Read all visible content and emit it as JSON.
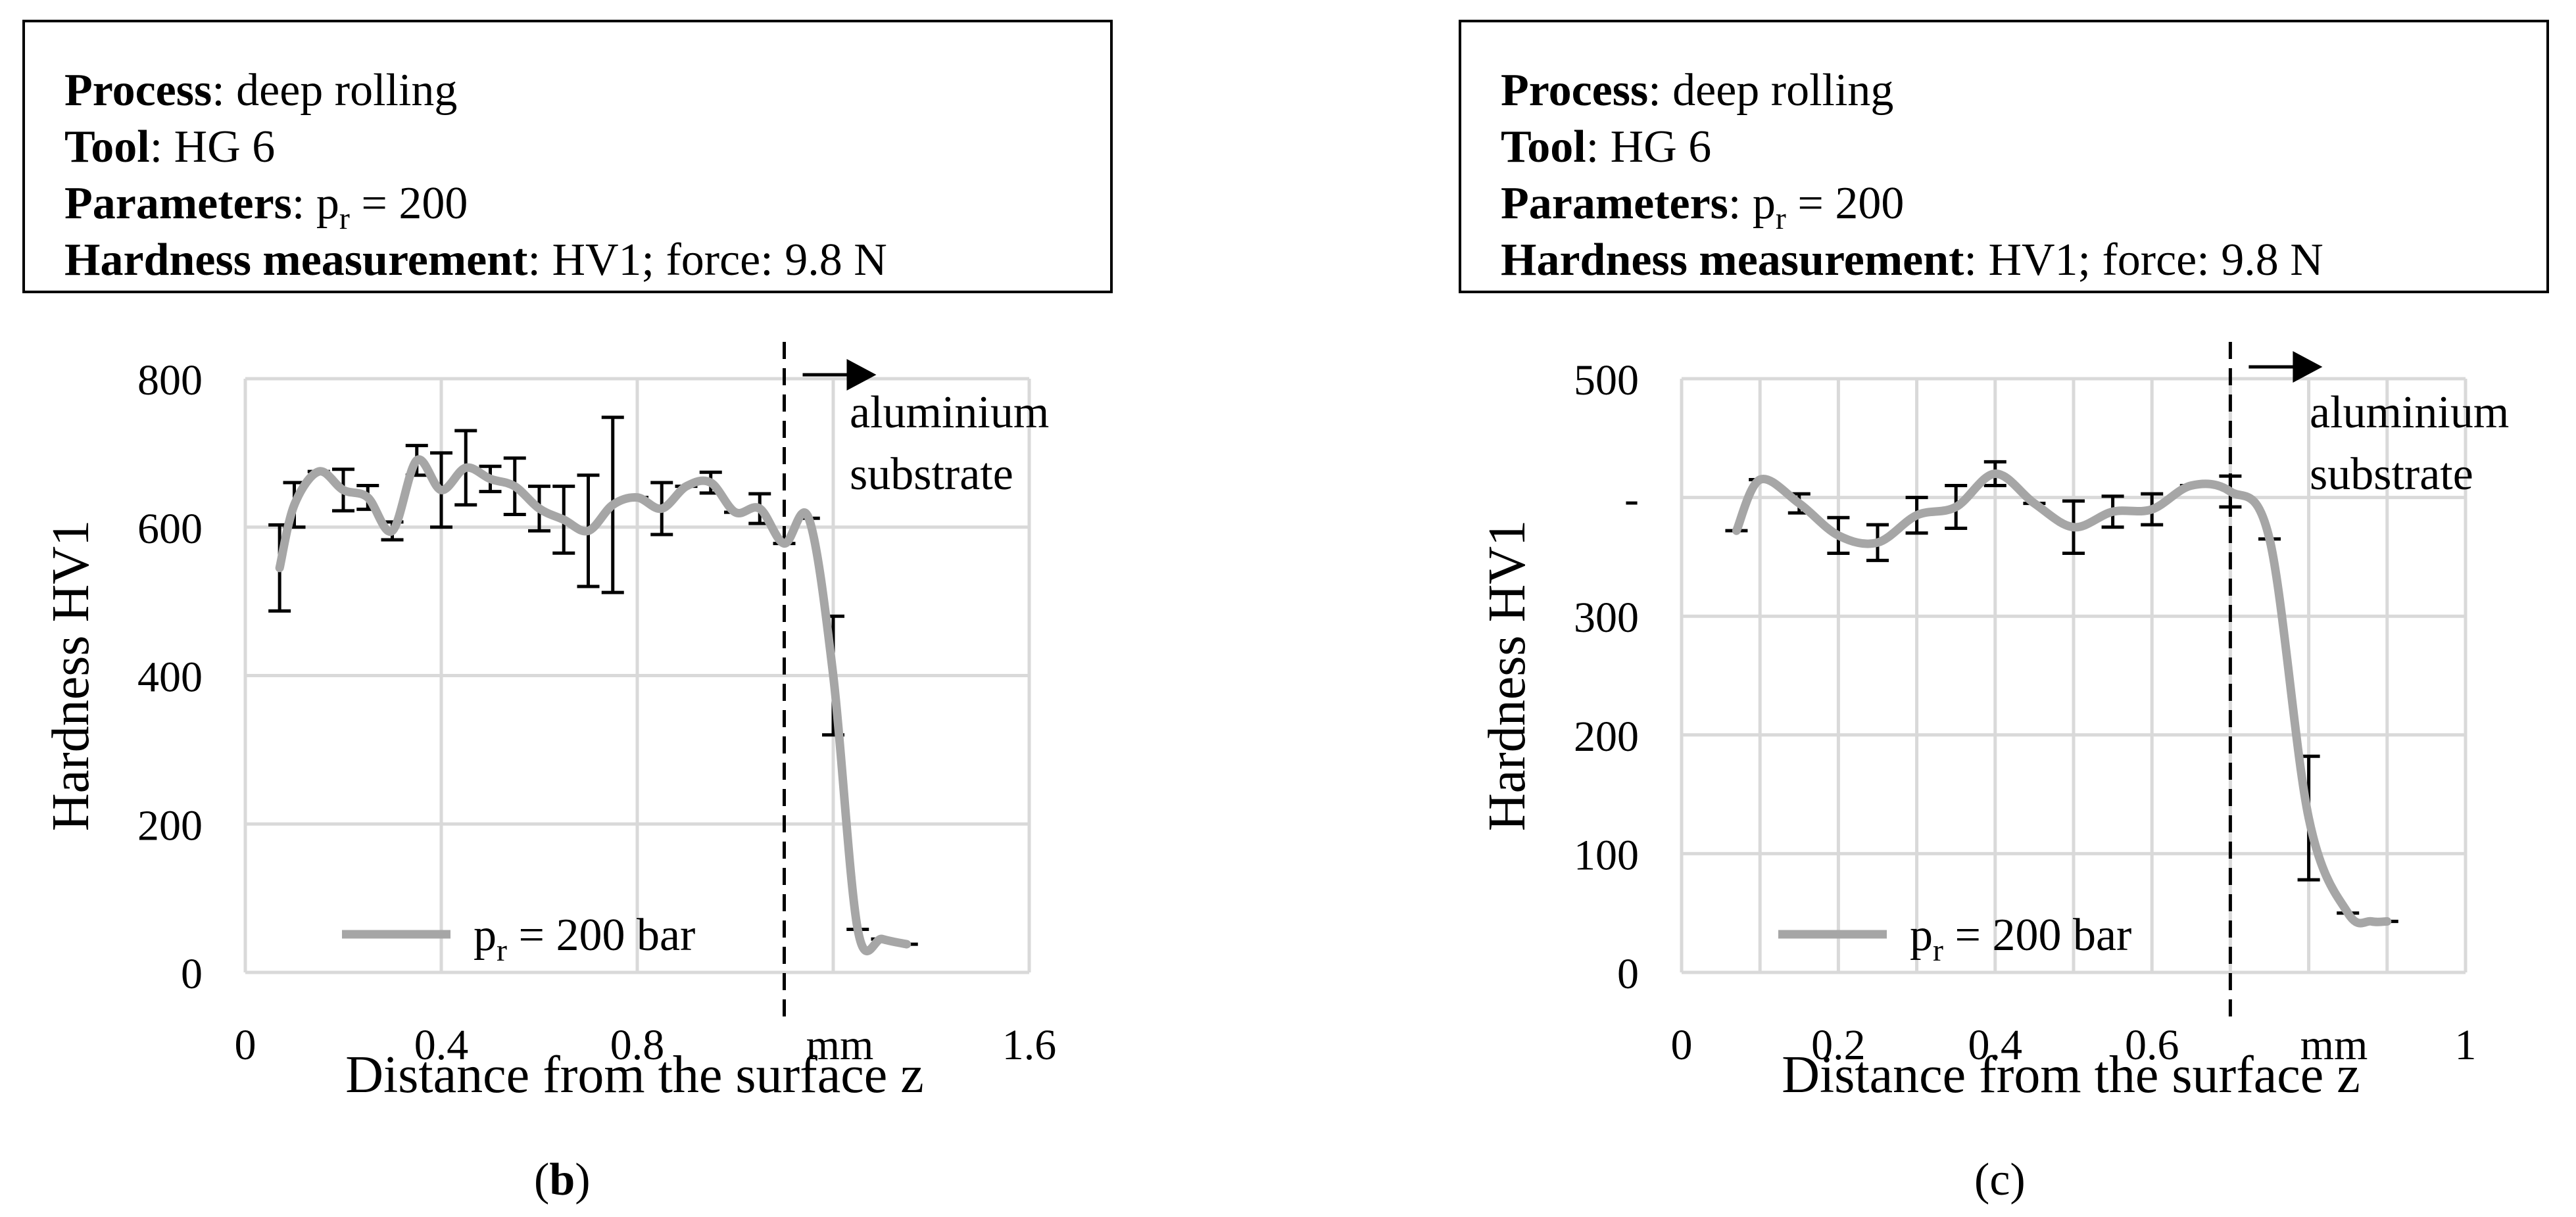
{
  "info": {
    "process_label": "Process",
    "process_value": "deep rolling",
    "tool_label": "Tool",
    "tool_value": "HG 6",
    "parameters_label": "Parameters",
    "parameters_symbol": "p",
    "parameters_sub": "r",
    "parameters_value": " = 200",
    "hardness_label": "Hardness measurement",
    "hardness_value": "HV1; force: 9.8 N"
  },
  "colors": {
    "series_line": "#a6a6a6",
    "grid": "#d9d9d9",
    "error_bar": "#000000"
  },
  "chart_data": [
    {
      "type": "line",
      "panel_label": "b",
      "xlabel": "Distance from the surface z",
      "x_unit": "mm",
      "ylabel": "Hardness HV1",
      "xlim": [
        0,
        1.6
      ],
      "ylim": [
        0,
        800
      ],
      "x_ticks": [
        {
          "value": 0,
          "label": "0"
        },
        {
          "value": 0.4,
          "label": "0.4"
        },
        {
          "value": 0.8,
          "label": "0.8"
        },
        {
          "value": 1.6,
          "label": "1.6"
        }
      ],
      "x_gridlines": [
        0,
        0.4,
        0.8,
        1.2,
        1.6
      ],
      "y_ticks": [
        {
          "value": 0,
          "label": "0"
        },
        {
          "value": 200,
          "label": "200"
        },
        {
          "value": 400,
          "label": "400"
        },
        {
          "value": 600,
          "label": "600"
        },
        {
          "value": 800,
          "label": "800"
        }
      ],
      "y_gridlines": [
        0,
        200,
        400,
        600,
        800
      ],
      "boundary_x": 1.1,
      "annotation": [
        "aluminium",
        "substrate"
      ],
      "legend_symbol": "p",
      "legend_sub": "r",
      "legend_text": " = 200 bar",
      "legend_position": "bottom-left",
      "grid": true,
      "series": [
        {
          "name": "pr = 200 bar",
          "x": [
            0.07,
            0.1,
            0.15,
            0.2,
            0.25,
            0.3,
            0.35,
            0.4,
            0.45,
            0.5,
            0.55,
            0.6,
            0.65,
            0.7,
            0.75,
            0.8,
            0.85,
            0.9,
            0.95,
            1.0,
            1.05,
            1.1,
            1.15,
            1.2,
            1.25,
            1.3,
            1.35
          ],
          "y": [
            545,
            630,
            675,
            650,
            640,
            595,
            690,
            650,
            680,
            665,
            655,
            625,
            610,
            595,
            630,
            640,
            625,
            655,
            660,
            620,
            625,
            578,
            612,
            400,
            58,
            45,
            38
          ],
          "err": [
            58,
            30,
            0,
            28,
            16,
            12,
            20,
            50,
            50,
            17,
            38,
            30,
            45,
            75,
            118,
            0,
            35,
            0,
            14,
            0,
            20,
            0,
            0,
            80,
            0,
            0,
            0
          ]
        }
      ]
    },
    {
      "type": "line",
      "panel_label": "c",
      "xlabel": "Distance from the surface z",
      "x_unit": "mm",
      "ylabel": "Hardness HV1",
      "xlim": [
        0,
        1
      ],
      "ylim": [
        0,
        500
      ],
      "x_ticks": [
        {
          "value": 0,
          "label": "0"
        },
        {
          "value": 0.2,
          "label": "0.2"
        },
        {
          "value": 0.4,
          "label": "0.4"
        },
        {
          "value": 0.6,
          "label": "0.6"
        },
        {
          "value": 1,
          "label": "1"
        }
      ],
      "x_gridlines": [
        0,
        0.1,
        0.2,
        0.3,
        0.4,
        0.5,
        0.6,
        0.7,
        0.8,
        0.9,
        1.0
      ],
      "y_ticks": [
        {
          "value": 0,
          "label": "0"
        },
        {
          "value": 100,
          "label": "100"
        },
        {
          "value": 200,
          "label": "200"
        },
        {
          "value": 300,
          "label": "300"
        },
        {
          "value": 400,
          "label": "-"
        },
        {
          "value": 500,
          "label": "500"
        }
      ],
      "y_gridlines": [
        0,
        100,
        200,
        300,
        400,
        500
      ],
      "boundary_x": 0.7,
      "annotation": [
        "aluminium",
        "substrate"
      ],
      "legend_symbol": "p",
      "legend_sub": "r",
      "legend_text": " = 200 bar",
      "legend_position": "bottom-left",
      "grid": true,
      "series": [
        {
          "name": "pr = 200 bar",
          "x": [
            0.07,
            0.1,
            0.15,
            0.2,
            0.25,
            0.3,
            0.35,
            0.4,
            0.45,
            0.5,
            0.55,
            0.6,
            0.65,
            0.7,
            0.75,
            0.8,
            0.85,
            0.88,
            0.9
          ],
          "y": [
            372,
            415,
            395,
            368,
            362,
            385,
            392,
            420,
            395,
            375,
            388,
            390,
            410,
            405,
            365,
            130,
            50,
            43,
            43
          ],
          "err": [
            0,
            0,
            8,
            15,
            15,
            15,
            18,
            10,
            0,
            22,
            13,
            13,
            0,
            13,
            0,
            52,
            0,
            0,
            0
          ]
        }
      ]
    }
  ]
}
